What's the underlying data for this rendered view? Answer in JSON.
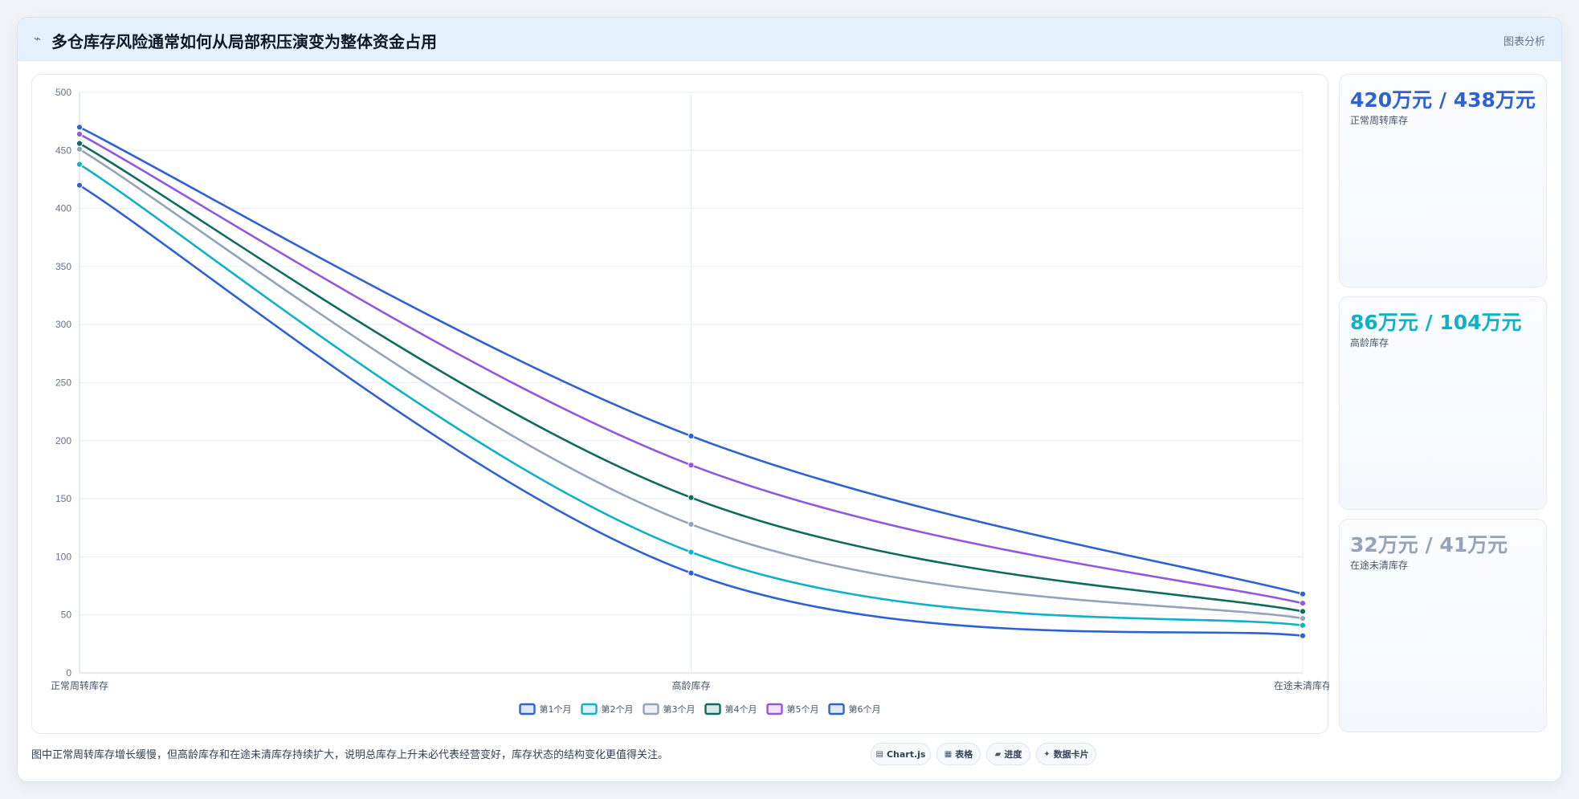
{
  "header": {
    "icon": "chart-icon",
    "title": "多仓库存风险通常如何从局部积压演变为整体资金占用",
    "subtitle": "图表分析"
  },
  "chart_data": {
    "type": "line",
    "categories": [
      "正常周转库存",
      "高龄库存",
      "在途未清库存"
    ],
    "series": [
      {
        "name": "第1个月",
        "values": [
          420,
          86,
          32
        ],
        "color": "#2f62d1"
      },
      {
        "name": "第2个月",
        "values": [
          438,
          104,
          41
        ],
        "color": "#0fb1c7"
      },
      {
        "name": "第3个月",
        "values": [
          451,
          128,
          47
        ],
        "color": "#94a3b8"
      },
      {
        "name": "第4个月",
        "values": [
          456,
          151,
          53
        ],
        "color": "#0f6b5c"
      },
      {
        "name": "第5个月",
        "values": [
          464,
          179,
          60
        ],
        "color": "#9158dd"
      },
      {
        "name": "第6个月",
        "values": [
          470,
          204,
          68
        ],
        "color": "#2f62d1"
      }
    ],
    "ylim": [
      0,
      500
    ],
    "yticks": [
      0,
      50,
      100,
      150,
      200,
      250,
      300,
      350,
      400,
      450,
      500
    ],
    "grid": true,
    "legend_position": "bottom"
  },
  "kpis": [
    {
      "value": "420万元 / 438万元",
      "label": "正常周转库存",
      "color": "#2f62d1"
    },
    {
      "value": "86万元 / 104万元",
      "label": "高龄库存",
      "color": "#0fb1c7"
    },
    {
      "value": "32万元 / 41万元",
      "label": "在途未清库存",
      "color": "#94a3b8"
    }
  ],
  "note": "图中正常周转库存增长缓慢，但高龄库存和在途未清库存持续扩大，说明总库存上升未必代表经营变好，库存状态的结构变化更值得关注。",
  "toolbar": [
    {
      "icon": "chartjs-icon",
      "glyph": "▤",
      "label": "Chart.js"
    },
    {
      "icon": "table-icon",
      "glyph": "▦",
      "label": "表格"
    },
    {
      "icon": "progress-icon",
      "glyph": "▰",
      "label": "进度"
    },
    {
      "icon": "data-card-icon",
      "glyph": "✦",
      "label": "数据卡片"
    }
  ]
}
